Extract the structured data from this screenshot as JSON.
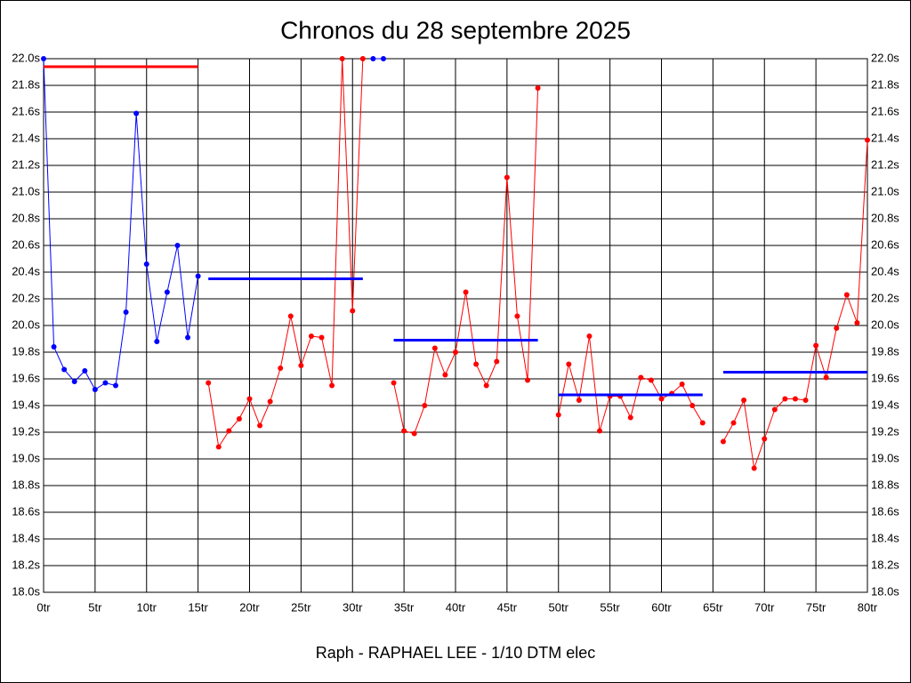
{
  "chart_data": {
    "type": "line",
    "title": "Chronos du 28 septembre 2025",
    "x_label": "Raph - RAPHAEL LEE - 1/10 DTM elec",
    "xlim": [
      0,
      80
    ],
    "ylim": [
      18.0,
      22.0
    ],
    "grid": true,
    "xticks": [
      {
        "value": 0,
        "label": "0tr"
      },
      {
        "value": 5,
        "label": "5tr"
      },
      {
        "value": 10,
        "label": "10tr"
      },
      {
        "value": 15,
        "label": "15tr"
      },
      {
        "value": 20,
        "label": "20tr"
      },
      {
        "value": 25,
        "label": "25tr"
      },
      {
        "value": 30,
        "label": "30tr"
      },
      {
        "value": 35,
        "label": "35tr"
      },
      {
        "value": 40,
        "label": "40tr"
      },
      {
        "value": 45,
        "label": "45tr"
      },
      {
        "value": 50,
        "label": "50tr"
      },
      {
        "value": 55,
        "label": "55tr"
      },
      {
        "value": 60,
        "label": "60tr"
      },
      {
        "value": 65,
        "label": "65tr"
      },
      {
        "value": 70,
        "label": "70tr"
      },
      {
        "value": 75,
        "label": "75tr"
      },
      {
        "value": 80,
        "label": "80tr"
      }
    ],
    "yticks": [
      {
        "value": 18.0,
        "label": "18.0s"
      },
      {
        "value": 18.2,
        "label": "18.2s"
      },
      {
        "value": 18.4,
        "label": "18.4s"
      },
      {
        "value": 18.6,
        "label": "18.6s"
      },
      {
        "value": 18.8,
        "label": "18.8s"
      },
      {
        "value": 19.0,
        "label": "19.0s"
      },
      {
        "value": 19.2,
        "label": "19.2s"
      },
      {
        "value": 19.4,
        "label": "19.4s"
      },
      {
        "value": 19.6,
        "label": "19.6s"
      },
      {
        "value": 19.8,
        "label": "19.8s"
      },
      {
        "value": 20.0,
        "label": "20.0s"
      },
      {
        "value": 20.2,
        "label": "20.2s"
      },
      {
        "value": 20.4,
        "label": "20.4s"
      },
      {
        "value": 20.6,
        "label": "20.6s"
      },
      {
        "value": 20.8,
        "label": "20.8s"
      },
      {
        "value": 21.0,
        "label": "21.0s"
      },
      {
        "value": 21.2,
        "label": "21.2s"
      },
      {
        "value": 21.4,
        "label": "21.4s"
      },
      {
        "value": 21.6,
        "label": "21.6s"
      },
      {
        "value": 21.8,
        "label": "21.8s"
      },
      {
        "value": 22.0,
        "label": "22.0s"
      }
    ],
    "series": [
      {
        "color": "#0000ff",
        "markers": true,
        "width": 1,
        "x": [
          0,
          1,
          2,
          3,
          4,
          5,
          6,
          7,
          8,
          9,
          10,
          11,
          12,
          13,
          14,
          15
        ],
        "values": [
          22.0,
          19.84,
          19.67,
          19.58,
          19.66,
          19.52,
          19.57,
          19.55,
          20.1,
          21.59,
          20.46,
          19.88,
          20.25,
          20.6,
          19.91,
          20.37
        ]
      },
      {
        "color": "#ff0000",
        "markers": true,
        "width": 1,
        "x": [
          16,
          17,
          18,
          19,
          20,
          21,
          22,
          23,
          24,
          25,
          26,
          27,
          28,
          29,
          30,
          31
        ],
        "values": [
          19.57,
          19.09,
          19.21,
          19.3,
          19.45,
          19.25,
          19.43,
          19.68,
          20.07,
          19.7,
          19.92,
          19.91,
          19.55,
          22.0,
          20.11,
          22.0
        ]
      },
      {
        "color": "#0000ff",
        "markers": true,
        "width": 1,
        "x": [
          32,
          33
        ],
        "values": [
          22.0,
          22.0
        ]
      },
      {
        "color": "#ff0000",
        "markers": true,
        "width": 1,
        "x": [
          34,
          35,
          36,
          37,
          38,
          39,
          40,
          41,
          42,
          43,
          44,
          45,
          46,
          47,
          48
        ],
        "values": [
          19.57,
          19.21,
          19.19,
          19.4,
          19.83,
          19.63,
          19.8,
          20.25,
          19.71,
          19.55,
          19.73,
          21.11,
          20.07,
          19.59,
          21.78
        ]
      },
      {
        "color": "#ff0000",
        "markers": true,
        "width": 1,
        "x": [
          50,
          51,
          52,
          53,
          54,
          55,
          56,
          57,
          58,
          59,
          60,
          61,
          62,
          63,
          64
        ],
        "values": [
          19.33,
          19.71,
          19.44,
          19.92,
          19.21,
          19.47,
          19.47,
          19.31,
          19.61,
          19.59,
          19.45,
          19.49,
          19.56,
          19.4,
          19.27
        ]
      },
      {
        "color": "#ff0000",
        "markers": true,
        "width": 1,
        "x": [
          66,
          67,
          68,
          69,
          70,
          71,
          72,
          73,
          74,
          75,
          76,
          77,
          78,
          79,
          80
        ],
        "values": [
          19.13,
          19.27,
          19.44,
          18.93,
          19.15,
          19.37,
          19.45,
          19.45,
          19.44,
          19.85,
          19.61,
          19.98,
          20.23,
          20.02,
          21.39
        ]
      },
      {
        "color": "#ff0000",
        "markers": false,
        "width": 3,
        "x": [
          0,
          15
        ],
        "values": [
          21.94,
          21.94
        ]
      },
      {
        "color": "#0000ff",
        "markers": false,
        "width": 3,
        "x": [
          16,
          31
        ],
        "values": [
          20.35,
          20.35
        ]
      },
      {
        "color": "#0000ff",
        "markers": false,
        "width": 3,
        "x": [
          34,
          48
        ],
        "values": [
          19.89,
          19.89
        ]
      },
      {
        "color": "#0000ff",
        "markers": false,
        "width": 3,
        "x": [
          50,
          64
        ],
        "values": [
          19.48,
          19.48
        ]
      },
      {
        "color": "#0000ff",
        "markers": false,
        "width": 3,
        "x": [
          66,
          80
        ],
        "values": [
          19.65,
          19.65
        ]
      }
    ]
  }
}
